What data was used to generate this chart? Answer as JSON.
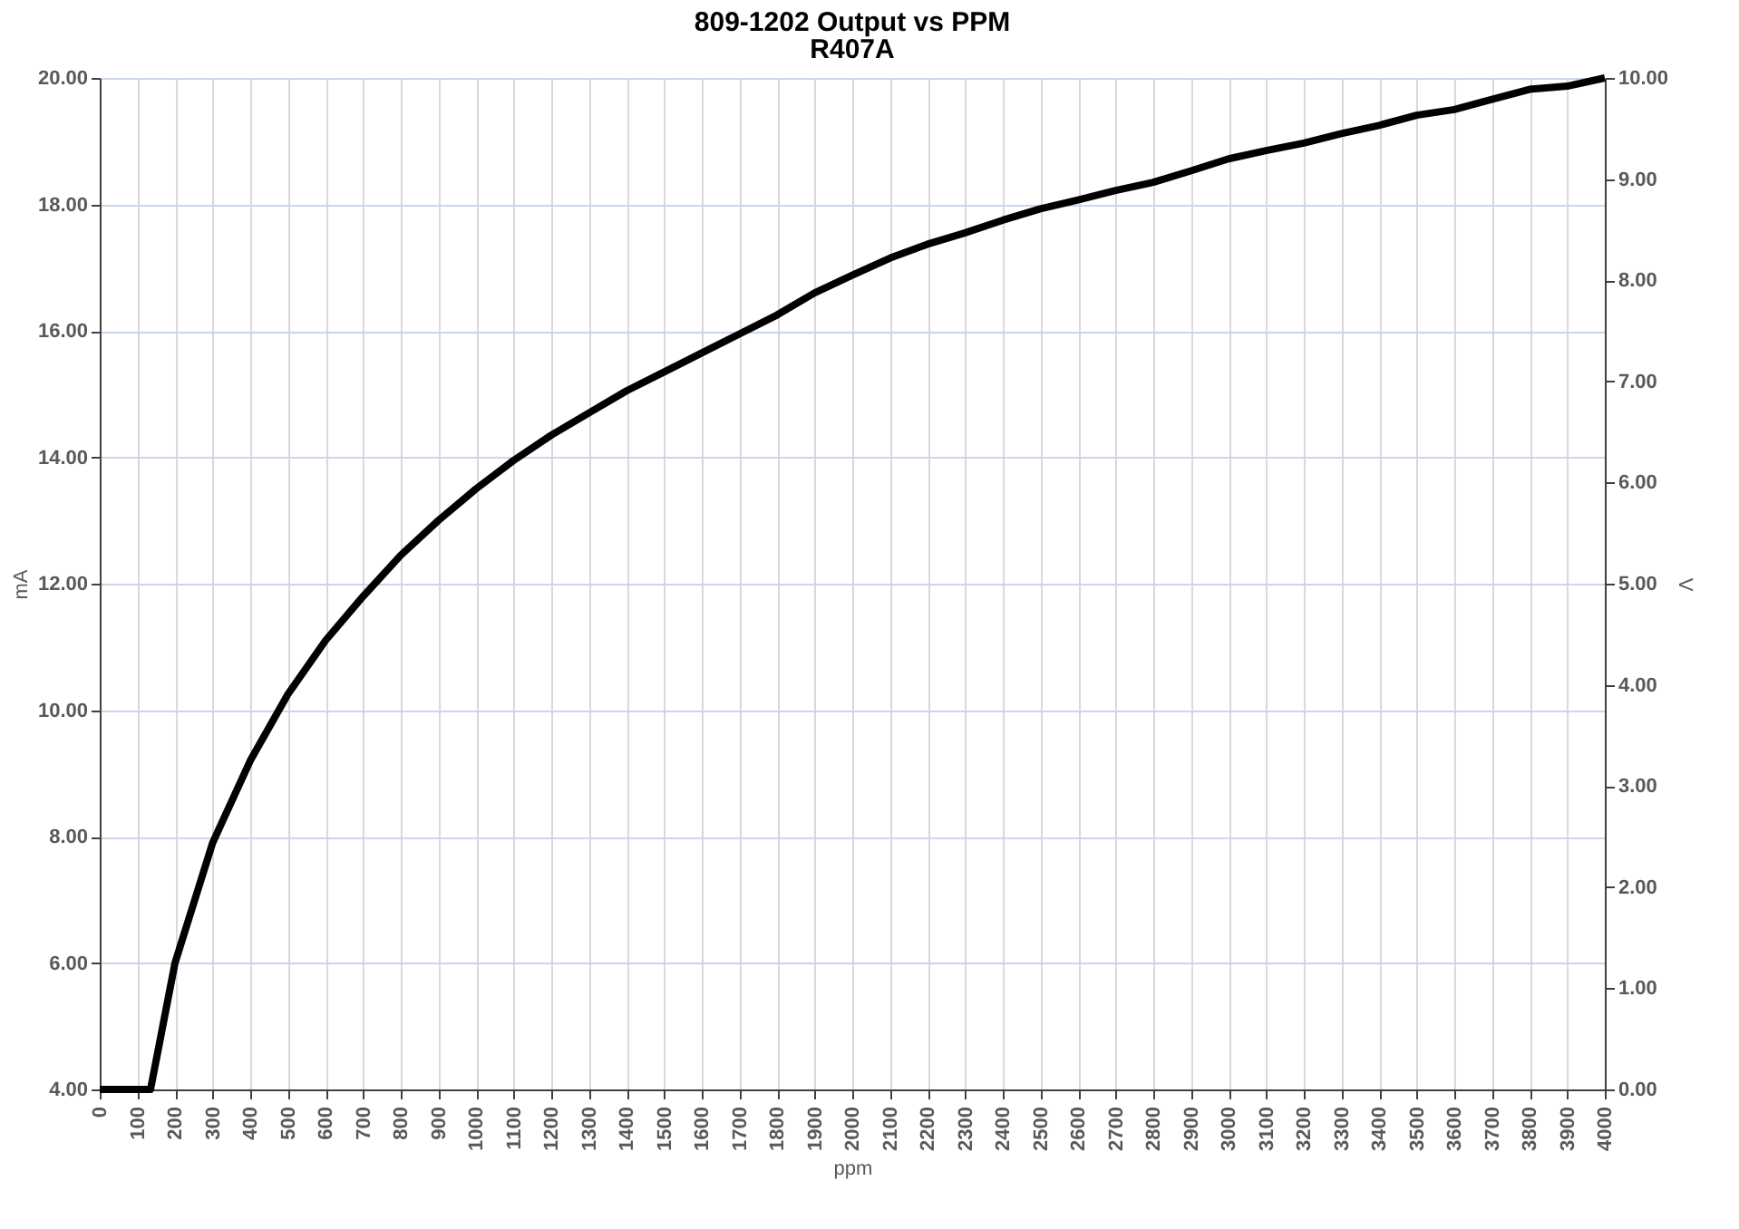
{
  "chart_data": {
    "type": "line",
    "title": "809-1202 Output vs PPM",
    "subtitle": "R407A",
    "xlabel": "ppm",
    "ylabel": "mA",
    "y2label": "V",
    "x": [
      0,
      100,
      135,
      200,
      300,
      400,
      500,
      600,
      700,
      800,
      900,
      1000,
      1100,
      1200,
      1300,
      1400,
      1500,
      1600,
      1700,
      1800,
      1900,
      2000,
      2100,
      2200,
      2300,
      2400,
      2500,
      2600,
      2700,
      2800,
      2900,
      3000,
      3100,
      3200,
      3300,
      3400,
      3500,
      3600,
      3700,
      3800,
      3900,
      4000
    ],
    "series": [
      {
        "color": "#000000",
        "values": [
          4.0,
          4.0,
          4.0,
          6.0,
          7.9,
          9.2,
          10.25,
          11.1,
          11.8,
          12.45,
          13.0,
          13.5,
          13.95,
          14.35,
          14.7,
          15.05,
          15.35,
          15.65,
          15.95,
          16.25,
          16.6,
          16.88,
          17.15,
          17.37,
          17.55,
          17.75,
          17.93,
          18.07,
          18.22,
          18.35,
          18.53,
          18.72,
          18.85,
          18.97,
          19.12,
          19.25,
          19.41,
          19.5,
          19.66,
          19.82,
          19.87,
          20.0
        ]
      }
    ],
    "xlim": [
      0,
      4000
    ],
    "xticks": [
      0,
      100,
      200,
      300,
      400,
      500,
      600,
      700,
      800,
      900,
      1000,
      1100,
      1200,
      1300,
      1400,
      1500,
      1600,
      1700,
      1800,
      1900,
      2000,
      2100,
      2200,
      2300,
      2400,
      2500,
      2600,
      2700,
      2800,
      2900,
      3000,
      3100,
      3200,
      3300,
      3400,
      3500,
      3600,
      3700,
      3800,
      3900,
      4000
    ],
    "ylim": [
      4,
      20
    ],
    "yticks": [
      {
        "value": 4,
        "label": "4.00"
      },
      {
        "value": 6,
        "label": "6.00"
      },
      {
        "value": 8,
        "label": "8.00"
      },
      {
        "value": 10,
        "label": "10.00"
      },
      {
        "value": 12,
        "label": "12.00"
      },
      {
        "value": 14,
        "label": "14.00"
      },
      {
        "value": 16,
        "label": "16.00"
      },
      {
        "value": 18,
        "label": "18.00"
      },
      {
        "value": 20,
        "label": "20.00"
      }
    ],
    "y2lim": [
      0,
      10
    ],
    "y2ticks": [
      {
        "value": 0,
        "label": "0.00"
      },
      {
        "value": 1,
        "label": "1.00"
      },
      {
        "value": 2,
        "label": "2.00"
      },
      {
        "value": 3,
        "label": "3.00"
      },
      {
        "value": 4,
        "label": "4.00"
      },
      {
        "value": 5,
        "label": "5.00"
      },
      {
        "value": 6,
        "label": "6.00"
      },
      {
        "value": 7,
        "label": "7.00"
      },
      {
        "value": 8,
        "label": "8.00"
      },
      {
        "value": 9,
        "label": "9.00"
      },
      {
        "value": 10,
        "label": "10.00"
      }
    ],
    "grid": true,
    "marker": "none",
    "line_style": "solid",
    "legend": false
  }
}
